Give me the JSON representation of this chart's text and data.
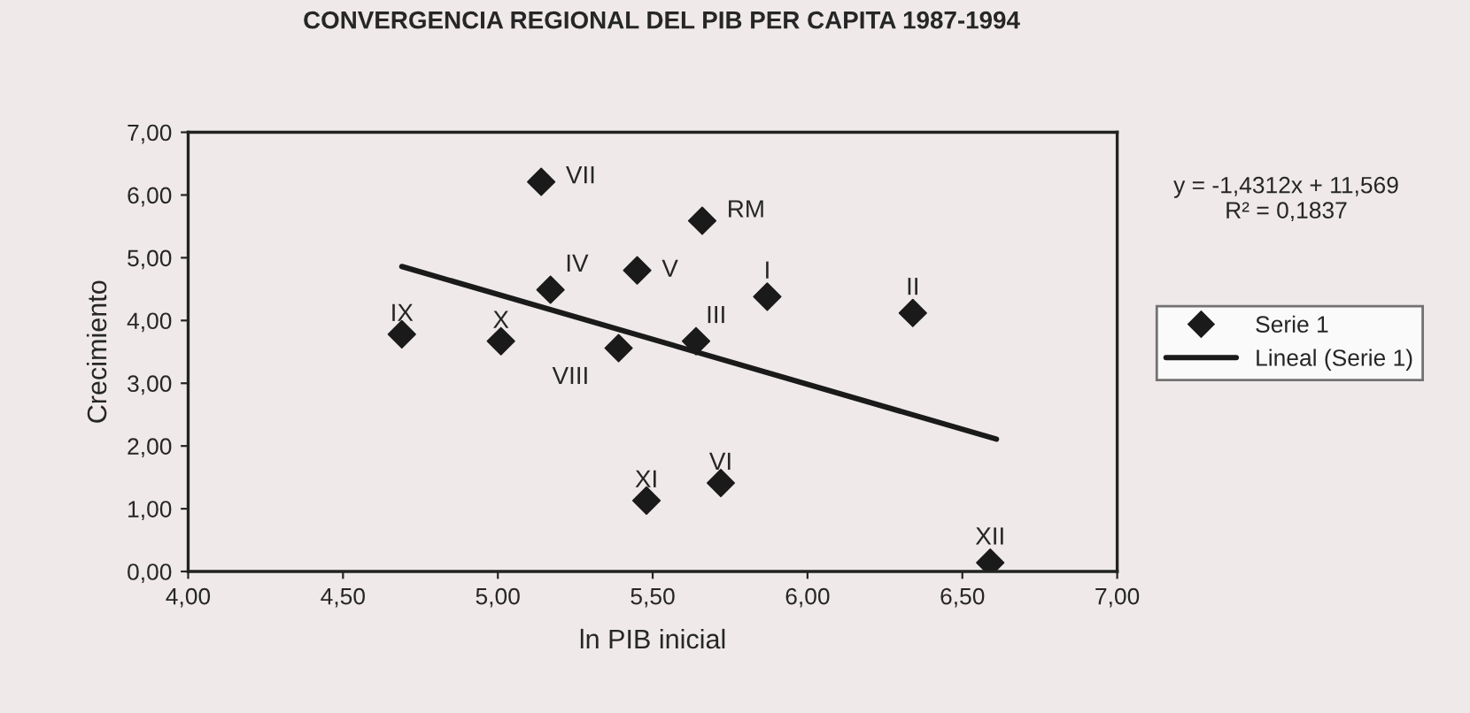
{
  "chart_data": {
    "type": "scatter",
    "title": "CONVERGENCIA REGIONAL DEL PIB PER CAPITA 1987-1994",
    "xlabel": "ln PIB inicial",
    "ylabel": "Crecimiento",
    "series": [
      {
        "name": "Serie 1",
        "color": "#1a1a1a",
        "marker": "diamond",
        "x": [
          4.69,
          5.01,
          5.14,
          5.17,
          5.45,
          5.39,
          5.66,
          5.64,
          5.48,
          5.72,
          5.87,
          6.34,
          6.59
        ],
        "values": [
          3.78,
          3.67,
          6.21,
          4.49,
          4.8,
          3.56,
          5.59,
          3.67,
          1.13,
          1.41,
          4.38,
          4.12,
          0.14
        ]
      },
      {
        "name": "Lineal (Serie 1)",
        "type": "line",
        "color": "#1a1a1a",
        "line_style": "solid",
        "x": [
          4.69,
          6.61
        ],
        "values": [
          4.86,
          2.11
        ]
      }
    ],
    "annotations": [
      {
        "text": "IX",
        "x": 4.69,
        "y": 3.78
      },
      {
        "text": "X",
        "x": 5.01,
        "y": 3.67
      },
      {
        "text": "VII",
        "x": 5.14,
        "y": 6.21
      },
      {
        "text": "IV",
        "x": 5.17,
        "y": 4.49
      },
      {
        "text": "V",
        "x": 5.45,
        "y": 4.8
      },
      {
        "text": "VIII",
        "x": 5.39,
        "y": 3.56
      },
      {
        "text": "RM",
        "x": 5.66,
        "y": 5.59
      },
      {
        "text": "III",
        "x": 5.64,
        "y": 3.67
      },
      {
        "text": "XI",
        "x": 5.48,
        "y": 1.13
      },
      {
        "text": "VI",
        "x": 5.72,
        "y": 1.41
      },
      {
        "text": "I",
        "x": 5.87,
        "y": 4.38
      },
      {
        "text": "II",
        "x": 6.34,
        "y": 4.12
      },
      {
        "text": "XII",
        "x": 6.59,
        "y": 0.14
      },
      "y = -1,4312x + 11,569\nR² = 0,1837"
    ],
    "xlim": [
      4,
      7
    ],
    "ylim": [
      0,
      7
    ],
    "xticks": [
      {
        "value": 4,
        "label": "4,00"
      },
      {
        "value": 4.5,
        "label": "4,50"
      },
      {
        "value": 5,
        "label": "5,00"
      },
      {
        "value": 5.5,
        "label": "5,50"
      },
      {
        "value": 6,
        "label": "6,00"
      },
      {
        "value": 6.5,
        "label": "6,50"
      },
      {
        "value": 7,
        "label": "7,00"
      }
    ],
    "yticks": [
      {
        "value": 0,
        "label": "0,00"
      },
      {
        "value": 1,
        "label": "1,00"
      },
      {
        "value": 2,
        "label": "2,00"
      },
      {
        "value": 3,
        "label": "3,00"
      },
      {
        "value": 4,
        "label": "4,00"
      },
      {
        "value": 5,
        "label": "5,00"
      },
      {
        "value": 6,
        "label": "6,00"
      },
      {
        "value": 7,
        "label": "7,00"
      }
    ],
    "grid": false,
    "legend": "right"
  }
}
